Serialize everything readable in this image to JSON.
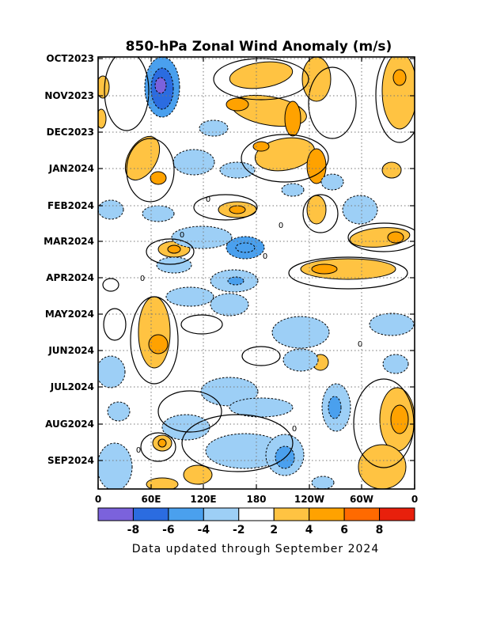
{
  "chart_data": {
    "type": "heatmap",
    "title": "850-hPa Zonal Wind Anomaly (m/s)",
    "footer": "Data updated through September 2024",
    "y_ticks": [
      "OCT2023",
      "NOV2023",
      "DEC2023",
      "JAN2024",
      "FEB2024",
      "MAR2024",
      "APR2024",
      "MAY2024",
      "JUN2024",
      "JUL2024",
      "AUG2024",
      "SEP2024"
    ],
    "x_ticks": [
      "0",
      "60E",
      "120E",
      "180",
      "120W",
      "60W",
      "0"
    ],
    "colorbar": {
      "tick_labels": [
        "-8",
        "-6",
        "-4",
        "-2",
        "2",
        "4",
        "6",
        "8"
      ],
      "colors": [
        "#7b62dc",
        "#2b6ce0",
        "#4aa0ee",
        "#9dcff6",
        "#ffffff",
        "#ffc342",
        "#ffa200",
        "#ff6a00",
        "#e8200c"
      ]
    },
    "grid": true,
    "contour_label": "0"
  }
}
